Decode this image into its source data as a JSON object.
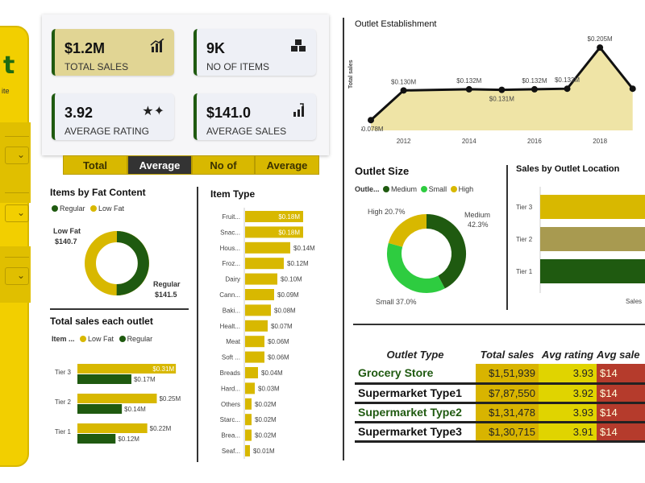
{
  "sidebar": {
    "logo": "t",
    "subtitle": "ite"
  },
  "kpis": [
    {
      "value": "$1.2M",
      "label": "TOTAL SALES",
      "icon": "bar-chart-icon"
    },
    {
      "value": "9K",
      "label": "NO OF ITEMS",
      "icon": "boxes-icon"
    },
    {
      "value": "3.92",
      "label": "AVERAGE RATING",
      "icon": "stars-icon"
    },
    {
      "value": "$141.0",
      "label": "AVERAGE SALES",
      "icon": "growth-chart-icon"
    }
  ],
  "tabs": [
    "Total",
    "Average",
    "No of",
    "Average"
  ],
  "fat_content": {
    "title": "Items by Fat Content",
    "legend": [
      "Regular",
      "Low Fat"
    ],
    "low_label": "Low Fat",
    "low_value": "$140.7",
    "reg_label": "Regular",
    "reg_value": "$141.5"
  },
  "outlet_sales": {
    "title": "Total sales each outlet",
    "legend_prefix": "Item ...",
    "legend": [
      "Low Fat",
      "Regular"
    ]
  },
  "item_type": {
    "title": "Item Type"
  },
  "establishment": {
    "title": "Outlet Establishment",
    "ylabel": "Total sales"
  },
  "outlet_size": {
    "title": "Outlet Size",
    "legend_prefix": "Outle...",
    "legend": [
      "Medium",
      "Small",
      "High"
    ],
    "high_label": "High 20.7%",
    "medium_label": "Medium",
    "medium_pct": "42.3%",
    "small_label": "Small 37.0%"
  },
  "location": {
    "title": "Sales by Outlet Location",
    "xlabel": "Sales"
  },
  "table": {
    "headers": [
      "Outlet Type",
      "Total sales",
      "Avg rating",
      "Avg sale"
    ],
    "rows": [
      {
        "type": "Grocery Store",
        "sales": "$1,51,939",
        "rating": "3.93",
        "avg": "$14"
      },
      {
        "type": "Supermarket Type1",
        "sales": "$7,87,550",
        "rating": "3.92",
        "avg": "$14"
      },
      {
        "type": "Supermarket Type2",
        "sales": "$1,31,478",
        "rating": "3.93",
        "avg": "$14"
      },
      {
        "type": "Supermarket Type3",
        "sales": "$1,30,715",
        "rating": "3.91",
        "avg": "$14"
      }
    ]
  },
  "colors": {
    "dark_green": "#1f5a10",
    "green": "#2ecc40",
    "gold": "#d8b800",
    "olive": "#a89a50"
  },
  "chart_data": [
    {
      "type": "pie",
      "title": "Items by Fat Content",
      "categories": [
        "Low Fat",
        "Regular"
      ],
      "values": [
        140.7,
        141.5
      ]
    },
    {
      "type": "bar",
      "title": "Total sales each outlet",
      "categories": [
        "Tier 3",
        "Tier 2",
        "Tier 1"
      ],
      "series": [
        {
          "name": "Low Fat",
          "values": [
            0.31,
            0.25,
            0.22
          ],
          "labels": [
            "$0.31M",
            "$0.25M",
            "$0.22M"
          ]
        },
        {
          "name": "Regular",
          "values": [
            0.17,
            0.14,
            0.12
          ],
          "labels": [
            "$0.17M",
            "$0.14M",
            "$0.12M"
          ]
        }
      ]
    },
    {
      "type": "bar",
      "title": "Item Type",
      "categories": [
        "Fruit...",
        "Snac...",
        "Hous...",
        "Froz...",
        "Dairy",
        "Cann...",
        "Baki...",
        "Healt...",
        "Meat",
        "Soft ...",
        "Breads",
        "Hard...",
        "Others",
        "Starc...",
        "Brea...",
        "Seaf..."
      ],
      "values": [
        0.18,
        0.18,
        0.14,
        0.12,
        0.1,
        0.09,
        0.08,
        0.07,
        0.06,
        0.06,
        0.04,
        0.03,
        0.02,
        0.02,
        0.02,
        0.01
      ],
      "labels": [
        "$0.18M",
        "$0.18M",
        "$0.14M",
        "$0.12M",
        "$0.10M",
        "$0.09M",
        "$0.08M",
        "$0.07M",
        "$0.06M",
        "$0.06M",
        "$0.04M",
        "$0.03M",
        "$0.02M",
        "$0.02M",
        "$0.02M",
        "$0.01M"
      ]
    },
    {
      "type": "area",
      "title": "Outlet Establishment",
      "ylabel": "Total sales",
      "x": [
        2011,
        2012,
        2014,
        2015,
        2016,
        2017,
        2018,
        2019
      ],
      "values": [
        0.078,
        0.13,
        0.132,
        0.131,
        0.132,
        0.133,
        0.205,
        0.133
      ],
      "labels": [
        "$0.078M",
        "$0.130M",
        "$0.132M",
        "$0.131M",
        "$0.132M",
        "$0.133M",
        "$0.205M",
        ""
      ],
      "xticks": [
        "2012",
        "2014",
        "2016",
        "2018"
      ]
    },
    {
      "type": "pie",
      "title": "Outlet Size",
      "categories": [
        "Medium",
        "Small",
        "High"
      ],
      "values": [
        42.3,
        37.0,
        20.7
      ]
    },
    {
      "type": "bar",
      "title": "Sales by Outlet Location",
      "categories": [
        "Tier 3",
        "Tier 2",
        "Tier 1"
      ],
      "values": [
        1.0,
        1.0,
        1.0
      ]
    }
  ]
}
